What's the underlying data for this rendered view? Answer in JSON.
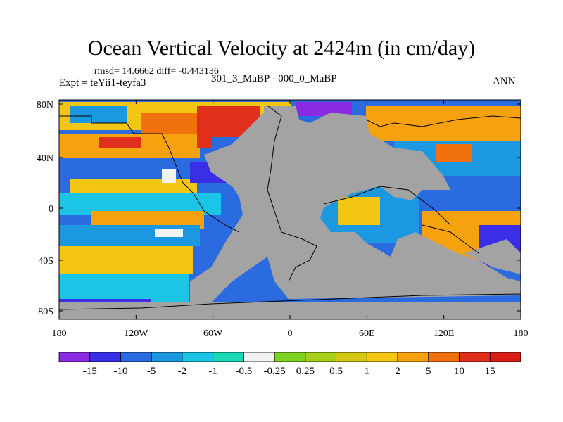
{
  "title": "Ocean Vertical Velocity at 2424m (in cm/day)",
  "stats_line": "rmsd= 14.6662 diff= -0.443136",
  "experiment": "Expt = teYii1-teyfa3",
  "difference_label": "301_3_MaBP - 000_0_MaBP",
  "season": "ANN",
  "map": {
    "lon_ticks": [
      "180",
      "120W",
      "60W",
      "0",
      "60E",
      "120E",
      "180"
    ],
    "lat_ticks": [
      "80N",
      "40N",
      "0",
      "40S",
      "80S"
    ],
    "land_color": "#a3a3a3"
  },
  "colorbar": {
    "labels": [
      "-15",
      "-10",
      "-5",
      "-2",
      "-1",
      "-0.5",
      "-0.25",
      "0.25",
      "0.5",
      "1",
      "2",
      "5",
      "10",
      "15"
    ],
    "colors": [
      "#8a2be2",
      "#3a2ee8",
      "#2a6be0",
      "#1b98e0",
      "#1cc4e6",
      "#19d9b9",
      "#f2f2f2",
      "#7ed321",
      "#a8cf1a",
      "#d4c814",
      "#f3c613",
      "#f6a20f",
      "#f2710f",
      "#e0301c",
      "#d81e14"
    ]
  }
}
